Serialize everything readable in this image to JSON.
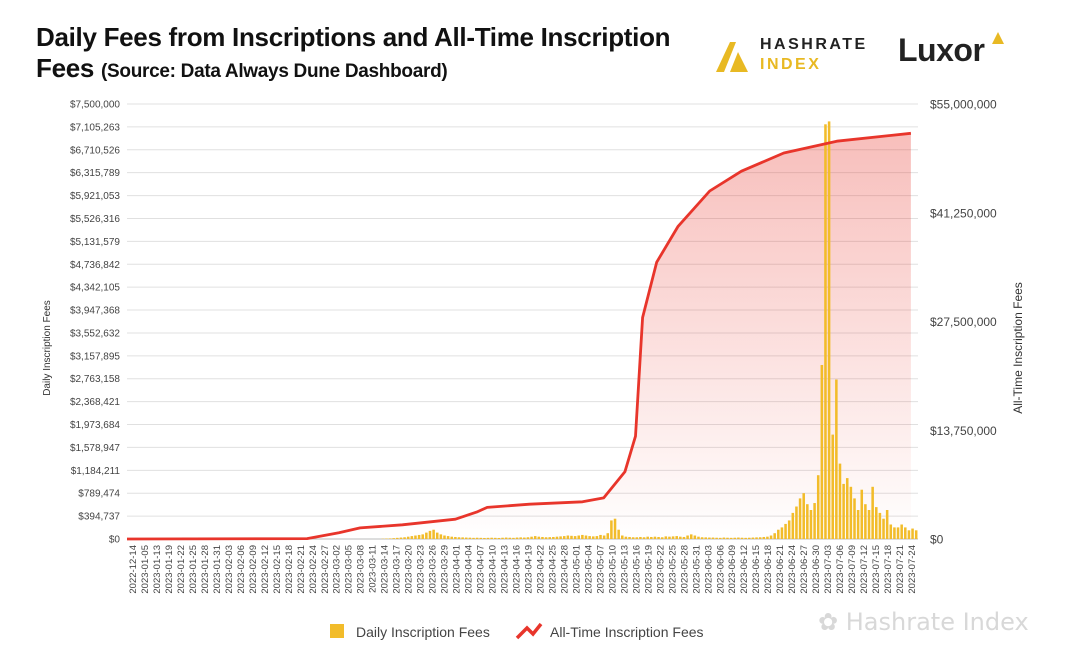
{
  "header": {
    "title_line1": "Daily Fees from Inscriptions and All-Time Inscription",
    "title_line2": "Fees",
    "source": "(Source: Data Always Dune Dashboard)"
  },
  "logos": {
    "hashrate_line1": "HASHRATE",
    "hashrate_line2": "INDEX",
    "luxor": "Luxor"
  },
  "watermark": "Hashrate Index",
  "colors": {
    "bar": "#F2BC2A",
    "line": "#E8352B",
    "area": "#E8352B",
    "grid": "#e0e0e0"
  },
  "chart_data": {
    "type": "bar+line",
    "title": "Daily Fees from Inscriptions and All-Time Inscription Fees",
    "ylabel_left": "Daily Inscription Fees",
    "ylabel_right": "All-Time Inscription Fees",
    "y_left_range": [
      0,
      7500000
    ],
    "y_right_range": [
      0,
      55000000
    ],
    "y_left_ticks": [
      "$0",
      "$394,737",
      "$789,474",
      "$1,184,211",
      "$1,578,947",
      "$1,973,684",
      "$2,368,421",
      "$2,763,158",
      "$3,157,895",
      "$3,552,632",
      "$3,947,368",
      "$4,342,105",
      "$4,736,842",
      "$5,131,579",
      "$5,526,316",
      "$5,921,053",
      "$6,315,789",
      "$6,710,526",
      "$7,105,263",
      "$7,500,000"
    ],
    "y_right_ticks": [
      "$0",
      "$13,750,000",
      "$27,500,000",
      "$41,250,000",
      "$55,000,000"
    ],
    "x_ticks": [
      "2022-12-14",
      "2023-01-05",
      "2023-01-13",
      "2023-01-19",
      "2023-01-22",
      "2023-01-25",
      "2023-01-28",
      "2023-01-31",
      "2023-02-03",
      "2023-02-06",
      "2023-02-09",
      "2023-02-12",
      "2023-02-15",
      "2023-02-18",
      "2023-02-21",
      "2023-02-24",
      "2023-02-27",
      "2023-03-02",
      "2023-03-05",
      "2023-03-08",
      "2023-03-11",
      "2023-03-14",
      "2023-03-17",
      "2023-03-20",
      "2023-03-23",
      "2023-03-26",
      "2023-03-29",
      "2023-04-01",
      "2023-04-04",
      "2023-04-07",
      "2023-04-10",
      "2023-04-13",
      "2023-04-16",
      "2023-04-19",
      "2023-04-22",
      "2023-04-25",
      "2023-04-28",
      "2023-05-01",
      "2023-05-04",
      "2023-05-07",
      "2023-05-10",
      "2023-05-13",
      "2023-05-16",
      "2023-05-19",
      "2023-05-22",
      "2023-05-25",
      "2023-05-28",
      "2023-05-31",
      "2023-06-03",
      "2023-06-06",
      "2023-06-09",
      "2023-06-12",
      "2023-06-15",
      "2023-06-18",
      "2023-06-21",
      "2023-06-24",
      "2023-06-27",
      "2023-06-30",
      "2023-07-03",
      "2023-07-06",
      "2023-07-09",
      "2023-07-12",
      "2023-07-15",
      "2023-07-18",
      "2023-07-21",
      "2023-07-24"
    ],
    "series": [
      {
        "name": "Daily Inscription Fees",
        "type": "bar",
        "axis": "left",
        "values": [
          0,
          0,
          0,
          0,
          0,
          0,
          0,
          0,
          0,
          0,
          0,
          0,
          0,
          0,
          0,
          0,
          0,
          0,
          0,
          0,
          0,
          0,
          0,
          0,
          0,
          0,
          0,
          0,
          0,
          0,
          0,
          0,
          0,
          0,
          0,
          0,
          0,
          0,
          0,
          0,
          0,
          0,
          0,
          0,
          0,
          0,
          0,
          0,
          0,
          0,
          0,
          0,
          0,
          0,
          0,
          0,
          0,
          0,
          0,
          0,
          0,
          0,
          0,
          0,
          0,
          0,
          0,
          0,
          0,
          0,
          5000,
          8000,
          10000,
          15000,
          20000,
          25000,
          30000,
          40000,
          50000,
          60000,
          70000,
          80000,
          110000,
          140000,
          160000,
          110000,
          80000,
          60000,
          50000,
          40000,
          35000,
          30000,
          28000,
          25000,
          23000,
          20000,
          22000,
          20000,
          18000,
          20000,
          22000,
          20000,
          18000,
          22000,
          25000,
          22000,
          20000,
          25000,
          28000,
          25000,
          30000,
          40000,
          50000,
          40000,
          35000,
          30000,
          32000,
          35000,
          40000,
          45000,
          50000,
          60000,
          55000,
          50000,
          60000,
          70000,
          60000,
          50000,
          45000,
          50000,
          70000,
          60000,
          100000,
          320000,
          350000,
          160000,
          60000,
          40000,
          35000,
          30000,
          30000,
          35000,
          30000,
          40000,
          35000,
          40000,
          35000,
          30000,
          45000,
          40000,
          45000,
          50000,
          40000,
          35000,
          60000,
          80000,
          60000,
          40000,
          30000,
          28000,
          25000,
          25000,
          22000,
          20000,
          25000,
          22000,
          20000,
          22000,
          25000,
          22000,
          20000,
          22000,
          25000,
          28000,
          30000,
          35000,
          40000,
          60000,
          100000,
          160000,
          200000,
          260000,
          320000,
          450000,
          560000,
          700000,
          790000,
          600000,
          500000,
          620000,
          1100000,
          3000000,
          7150000,
          7200000,
          1800000,
          2750000,
          1300000,
          950000,
          1050000,
          900000,
          700000,
          500000,
          850000,
          600000,
          500000,
          900000,
          550000,
          450000,
          350000,
          500000,
          250000,
          200000,
          200000,
          250000,
          200000,
          150000,
          180000,
          150000
        ],
        "note": "daily values sampled; tail values approximate"
      },
      {
        "name": "All-Time Inscription Fees",
        "type": "line",
        "axis": "right",
        "points_by_date": [
          {
            "date": "2022-12-14",
            "value": 0
          },
          {
            "date": "2023-02-03",
            "value": 50000
          },
          {
            "date": "2023-02-12",
            "value": 800000
          },
          {
            "date": "2023-02-18",
            "value": 1400000
          },
          {
            "date": "2023-03-02",
            "value": 1800000
          },
          {
            "date": "2023-03-17",
            "value": 2500000
          },
          {
            "date": "2023-03-23",
            "value": 3400000
          },
          {
            "date": "2023-03-26",
            "value": 4000000
          },
          {
            "date": "2023-04-07",
            "value": 4400000
          },
          {
            "date": "2023-04-22",
            "value": 4700000
          },
          {
            "date": "2023-04-28",
            "value": 5200000
          },
          {
            "date": "2023-05-04",
            "value": 8500000
          },
          {
            "date": "2023-05-07",
            "value": 13000000
          },
          {
            "date": "2023-05-09",
            "value": 28000000
          },
          {
            "date": "2023-05-13",
            "value": 35000000
          },
          {
            "date": "2023-05-19",
            "value": 39500000
          },
          {
            "date": "2023-05-28",
            "value": 44000000
          },
          {
            "date": "2023-06-06",
            "value": 46500000
          },
          {
            "date": "2023-06-18",
            "value": 48800000
          },
          {
            "date": "2023-07-03",
            "value": 50300000
          },
          {
            "date": "2023-07-24",
            "value": 51300000
          }
        ]
      }
    ],
    "legend": [
      "Daily Inscription Fees",
      "All-Time Inscription Fees"
    ],
    "legend_position": "bottom-center",
    "grid": true
  }
}
